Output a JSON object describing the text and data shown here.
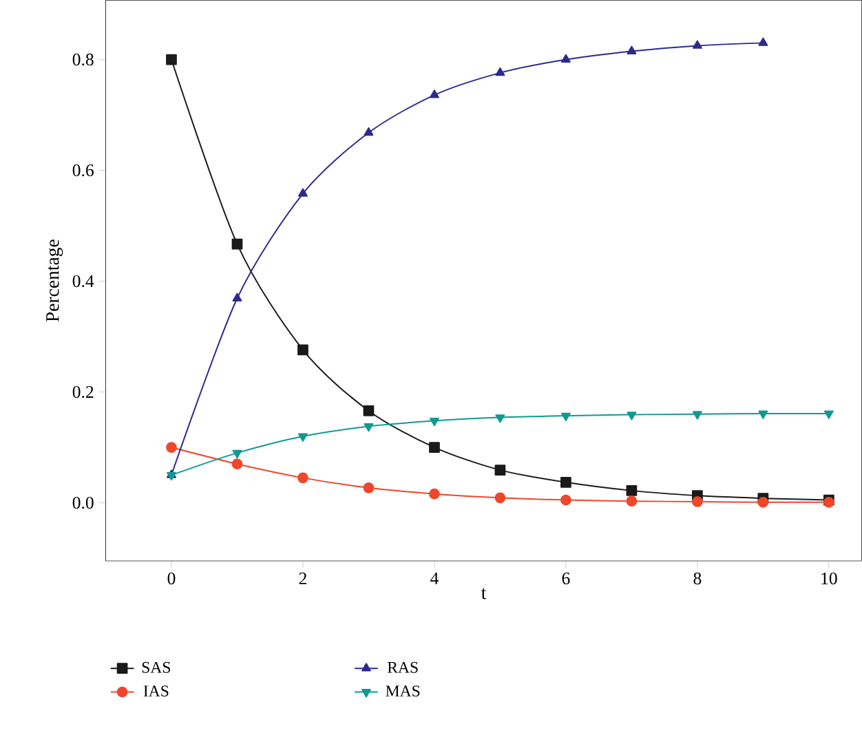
{
  "chart_data": {
    "type": "line",
    "xlabel": "t",
    "ylabel": "Percentage",
    "x": [
      0,
      1,
      2,
      3,
      4,
      5,
      6,
      7,
      8,
      9,
      10
    ],
    "series": [
      {
        "name": "SAS",
        "color": "#1a1a1a",
        "marker": "square",
        "values": [
          0.8,
          0.467,
          0.276,
          0.166,
          0.1,
          0.059,
          0.037,
          0.022,
          0.013,
          0.008,
          0.005
        ]
      },
      {
        "name": "IAS",
        "color": "#f0462a",
        "marker": "circle",
        "values": [
          0.1,
          0.07,
          0.045,
          0.027,
          0.016,
          0.009,
          0.005,
          0.003,
          0.002,
          0.001,
          0.001
        ]
      },
      {
        "name": "RAS",
        "color": "#2d2a8e",
        "marker": "triangle",
        "values": [
          0.05,
          0.369,
          0.558,
          0.668,
          0.736,
          0.776,
          0.8,
          0.815,
          0.825,
          0.83,
          null
        ]
      },
      {
        "name": "MAS",
        "color": "#0e9a92",
        "marker": "triangle-down",
        "values": [
          0.05,
          0.09,
          0.12,
          0.138,
          0.148,
          0.154,
          0.157,
          0.159,
          0.16,
          0.161,
          0.161
        ]
      }
    ],
    "xlim": [
      -1,
      10.5
    ],
    "ylim": [
      -0.105,
      0.907
    ],
    "xticks": [
      0,
      2,
      4,
      6,
      8,
      10
    ],
    "yticks": [
      {
        "value": 0.0,
        "label": "0.0"
      },
      {
        "value": 0.2,
        "label": "0.2"
      },
      {
        "value": 0.4,
        "label": "0.4"
      },
      {
        "value": 0.6,
        "label": "0.6"
      },
      {
        "value": 0.8,
        "label": "0.8"
      }
    ],
    "grid": false,
    "legend": "bottom",
    "line_style": "solid"
  }
}
